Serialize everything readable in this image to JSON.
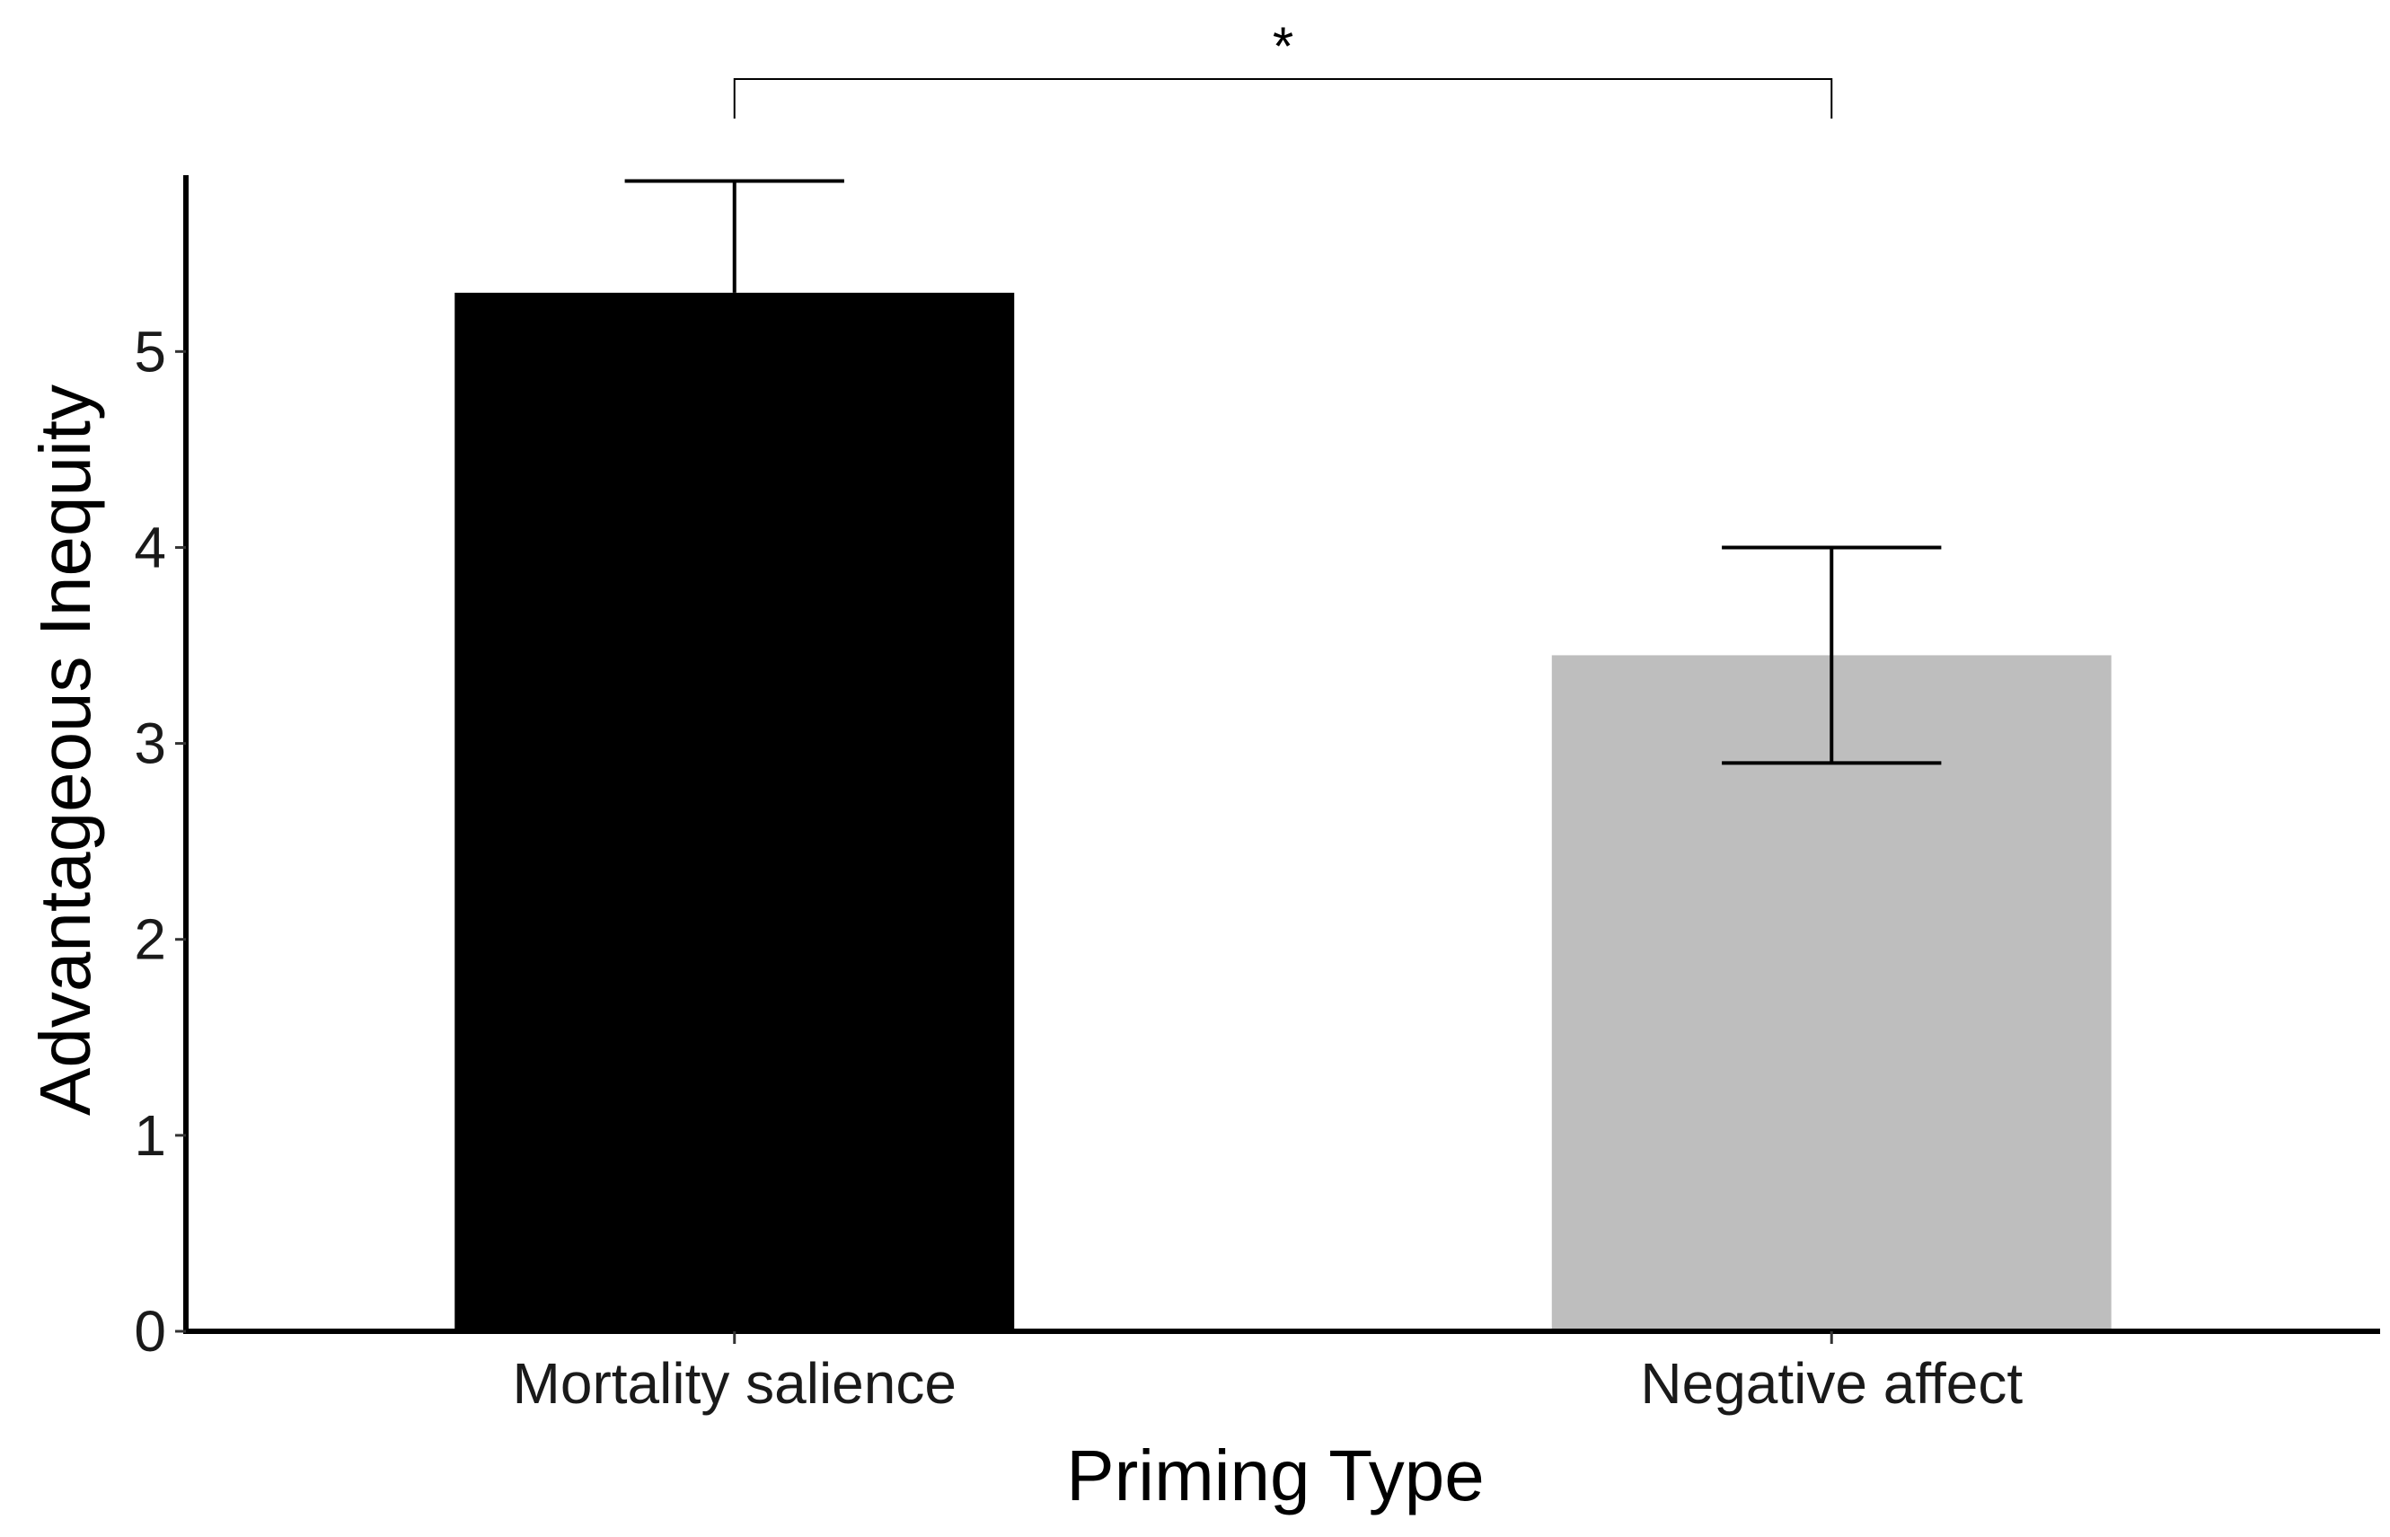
{
  "chart_data": {
    "type": "bar",
    "title": "",
    "xlabel": "Priming Type",
    "ylabel": "Advantageous Inequity",
    "categories": [
      "Mortality salience",
      "Negative affect"
    ],
    "values": [
      5.3,
      3.45
    ],
    "error_upper": [
      5.87,
      4.0
    ],
    "error_lower": [
      5.3,
      2.9
    ],
    "bar_colors": [
      "#000000",
      "#bebebe"
    ],
    "ylim": [
      0,
      5.9
    ],
    "yticks": [
      0,
      1,
      2,
      3,
      4,
      5
    ],
    "grid": false,
    "legend": "none",
    "significance": {
      "between": [
        0,
        1
      ],
      "label": "*"
    }
  }
}
